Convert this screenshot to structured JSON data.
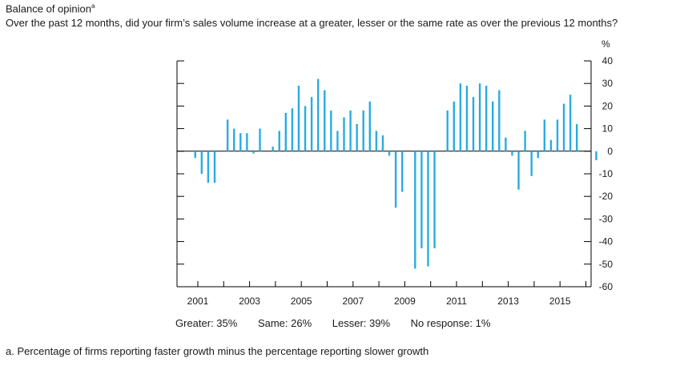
{
  "title": "Balance of opinion",
  "title_marker": "a",
  "subtitle": "Over the past 12 months, did your firm’s sales volume increase at a greater, lesser or the same rate as over the previous 12 months?",
  "breakdown": {
    "greater": "Greater: 35%",
    "same": "Same: 26%",
    "lesser": "Lesser: 39%",
    "no_response": "No response: 1%"
  },
  "footnote": "a. Percentage of firms reporting faster growth minus the percentage reporting slower growth",
  "chart_data": {
    "type": "bar",
    "title": "",
    "ylabel": "%",
    "ylim": [
      -60,
      40
    ],
    "yticks": [
      40,
      30,
      20,
      10,
      0,
      -10,
      -20,
      -30,
      -40,
      -50,
      -60
    ],
    "xtick_labels": [
      "2001",
      "2003",
      "2005",
      "2007",
      "2009",
      "2011",
      "2013",
      "2015"
    ],
    "x_start": 2000.9,
    "x_step": 0.25,
    "bar_color": "#29abe2",
    "values": [
      -3,
      -10,
      -14,
      -14,
      null,
      14,
      10,
      8,
      8,
      -1,
      10,
      null,
      2,
      9,
      17,
      19,
      29,
      20,
      24,
      32,
      27,
      18,
      9,
      15,
      18,
      12,
      18,
      22,
      9,
      7,
      -2,
      -25,
      -18,
      null,
      -52,
      -43,
      -51,
      -43,
      null,
      18,
      22,
      30,
      29,
      24,
      30,
      29,
      22,
      27,
      6,
      -2,
      -17,
      9,
      -11,
      -3,
      14,
      5,
      14,
      21,
      25,
      12,
      null,
      null,
      -4
    ]
  }
}
